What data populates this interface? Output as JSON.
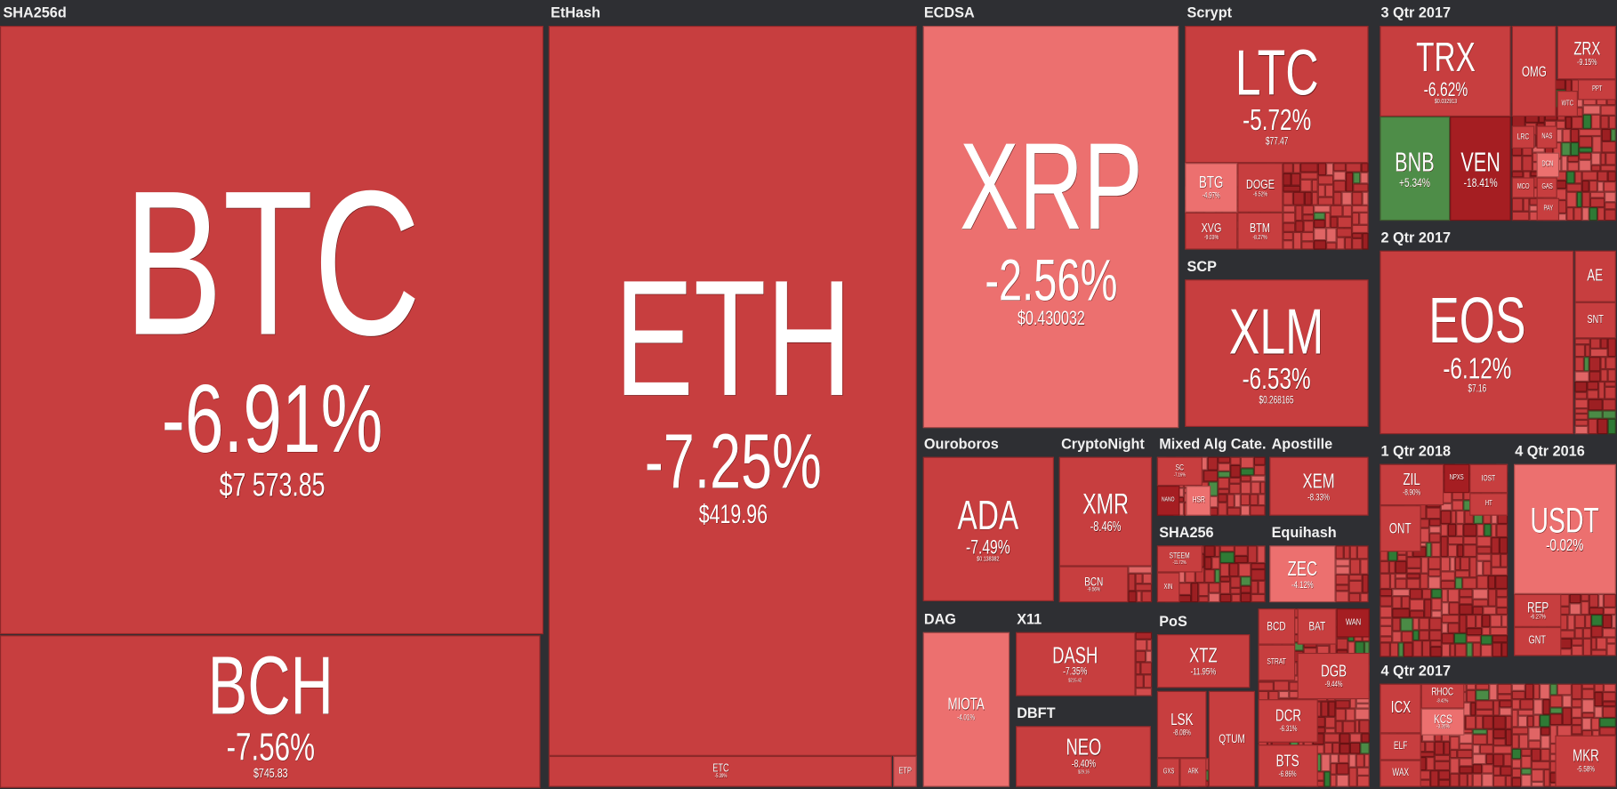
{
  "groups": [
    {
      "name": "SHA256d",
      "tiles": [
        {
          "symbol": "BTC",
          "change": "-6.91%",
          "price": "$7 573.85"
        },
        {
          "symbol": "BCH",
          "change": "-7.56%",
          "price": "$745.83"
        }
      ]
    },
    {
      "name": "EtHash",
      "tiles": [
        {
          "symbol": "ETH",
          "change": "-7.25%",
          "price": "$419.96"
        },
        {
          "symbol": "ETC",
          "change": "-5.39%"
        },
        {
          "symbol": "ETP"
        }
      ]
    },
    {
      "name": "ECDSA",
      "tiles": [
        {
          "symbol": "XRP",
          "change": "-2.56%",
          "price": "$0.430032"
        }
      ]
    },
    {
      "name": "Scrypt",
      "tiles": [
        {
          "symbol": "LTC",
          "change": "-5.72%",
          "price": "$77.47"
        },
        {
          "symbol": "BTG",
          "change": "-4.97%"
        },
        {
          "symbol": "DOGE",
          "change": "-6.52%"
        },
        {
          "symbol": "XVG",
          "change": "-9.03%"
        },
        {
          "symbol": "BTM",
          "change": "-8.27%"
        }
      ]
    },
    {
      "name": "SCP",
      "tiles": [
        {
          "symbol": "XLM",
          "change": "-6.53%",
          "price": "$0.268165"
        }
      ]
    },
    {
      "name": "3 Qtr 2017",
      "tiles": [
        {
          "symbol": "TRX",
          "change": "-6.62%",
          "price": "$0.032913"
        },
        {
          "symbol": "OMG"
        },
        {
          "symbol": "ZRX",
          "change": "-9.15%"
        },
        {
          "symbol": "BNB",
          "change": "+5.34%"
        },
        {
          "symbol": "VEN",
          "change": "-18.41%"
        },
        {
          "symbol": "PPT"
        },
        {
          "symbol": "WTC"
        },
        {
          "symbol": "LRC"
        },
        {
          "symbol": "NAS"
        },
        {
          "symbol": "DCN"
        },
        {
          "symbol": "GAS"
        },
        {
          "symbol": "MCO"
        },
        {
          "symbol": "PAY"
        }
      ]
    },
    {
      "name": "2 Qtr 2017",
      "tiles": [
        {
          "symbol": "EOS",
          "change": "-6.12%",
          "price": "$7.16"
        },
        {
          "symbol": "AE"
        },
        {
          "symbol": "SNT"
        }
      ]
    },
    {
      "name": "1 Qtr 2018",
      "tiles": [
        {
          "symbol": "ZIL",
          "change": "-8.90%"
        },
        {
          "symbol": "ONT"
        },
        {
          "symbol": "IOST"
        },
        {
          "symbol": "NPXS"
        },
        {
          "symbol": "HT"
        }
      ]
    },
    {
      "name": "4 Qtr 2016",
      "tiles": [
        {
          "symbol": "USDT",
          "change": "-0.02%"
        },
        {
          "symbol": "REP",
          "change": "-6.27%"
        },
        {
          "symbol": "GNT"
        }
      ]
    },
    {
      "name": "4 Qtr 2017",
      "tiles": [
        {
          "symbol": "ICX"
        },
        {
          "symbol": "RHOC",
          "change": "-8.42%"
        },
        {
          "symbol": "KCS",
          "change": "-3.26%"
        },
        {
          "symbol": "ELF"
        },
        {
          "symbol": "WAX"
        },
        {
          "symbol": "MKR",
          "change": "-5.58%"
        }
      ]
    },
    {
      "name": "Ouroboros",
      "tiles": [
        {
          "symbol": "ADA",
          "change": "-7.49%",
          "price": "$0.138382"
        }
      ]
    },
    {
      "name": "CryptoNight",
      "tiles": [
        {
          "symbol": "XMR",
          "change": "-8.46%"
        },
        {
          "symbol": "BCN",
          "change": "-9.56%"
        }
      ]
    },
    {
      "name": "Mixed Alg Cate...",
      "tiles": [
        {
          "symbol": "SC",
          "change": "-7.16%"
        },
        {
          "symbol": "NANO"
        },
        {
          "symbol": "HSR"
        }
      ]
    },
    {
      "name": "Apostille",
      "tiles": [
        {
          "symbol": "XEM",
          "change": "-8.33%"
        }
      ]
    },
    {
      "name": "SHA256",
      "tiles": [
        {
          "symbol": "STEEM",
          "change": "-11.72%"
        },
        {
          "symbol": "XIN"
        }
      ]
    },
    {
      "name": "Equihash",
      "tiles": [
        {
          "symbol": "ZEC",
          "change": "-4.12%"
        }
      ]
    },
    {
      "name": "DAG",
      "tiles": [
        {
          "symbol": "MIOTA",
          "change": "-4.01%"
        }
      ]
    },
    {
      "name": "X11",
      "tiles": [
        {
          "symbol": "DASH",
          "change": "-7.35%",
          "price": "$215.42"
        }
      ]
    },
    {
      "name": "DBFT",
      "tiles": [
        {
          "symbol": "NEO",
          "change": "-8.40%",
          "price": "$29.16"
        }
      ]
    },
    {
      "name": "PoS",
      "tiles": [
        {
          "symbol": "XTZ",
          "change": "-11.95%"
        },
        {
          "symbol": "LSK",
          "change": "-8.08%"
        },
        {
          "symbol": "QTUM"
        },
        {
          "symbol": "GXS"
        },
        {
          "symbol": "ARK"
        }
      ]
    },
    {
      "tiles": [
        {
          "symbol": "BCD"
        },
        {
          "symbol": "BAT"
        },
        {
          "symbol": "WAN"
        },
        {
          "symbol": "STRAT"
        },
        {
          "symbol": "DGB",
          "change": "-9.44%"
        },
        {
          "symbol": "DCR",
          "change": "-6.31%"
        },
        {
          "symbol": "BTS",
          "change": "-6.86%"
        }
      ]
    }
  ]
}
